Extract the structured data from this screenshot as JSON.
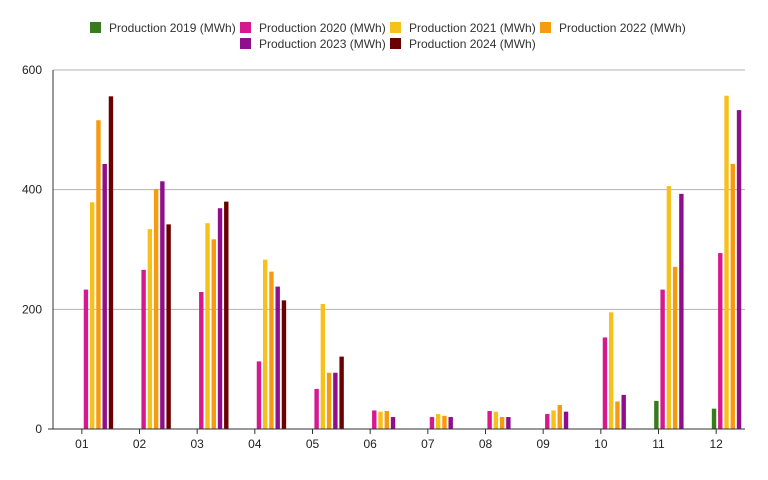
{
  "chart_data": {
    "type": "bar",
    "categories": [
      "01",
      "02",
      "03",
      "04",
      "05",
      "06",
      "07",
      "08",
      "09",
      "10",
      "11",
      "12"
    ],
    "series": [
      {
        "name": "Production 2019 (MWh)",
        "color": "#3a7a1f",
        "values": [
          null,
          null,
          null,
          null,
          null,
          null,
          null,
          null,
          null,
          null,
          47,
          34
        ]
      },
      {
        "name": "Production 2020 (MWh)",
        "color": "#d6198f",
        "values": [
          233,
          266,
          229,
          113,
          67,
          31,
          20,
          30,
          25,
          153,
          233,
          294
        ]
      },
      {
        "name": "Production 2021 (MWh)",
        "color": "#f5c11a",
        "values": [
          379,
          334,
          344,
          283,
          209,
          29,
          25,
          29,
          31,
          195,
          406,
          557
        ]
      },
      {
        "name": "Production 2022 (MWh)",
        "color": "#f59a11",
        "values": [
          516,
          401,
          317,
          263,
          94,
          30,
          22,
          20,
          40,
          46,
          271,
          443
        ]
      },
      {
        "name": "Production 2023 (MWh)",
        "color": "#8e0e8e",
        "values": [
          443,
          414,
          369,
          238,
          94,
          20,
          20,
          20,
          29,
          57,
          393,
          533
        ]
      },
      {
        "name": "Production 2024 (MWh)",
        "color": "#6b0000",
        "values": [
          556,
          342,
          380,
          215,
          121,
          null,
          null,
          null,
          null,
          null,
          null,
          null
        ]
      }
    ],
    "yticks": [
      "0",
      "200",
      "400",
      "600"
    ],
    "ylim": [
      0,
      600
    ],
    "grid": true,
    "legend_position": "top"
  }
}
